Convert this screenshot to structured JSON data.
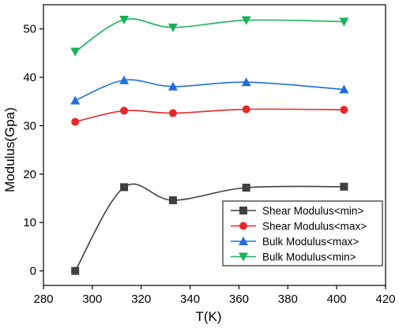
{
  "chart_data": {
    "type": "line",
    "title": "",
    "xlabel": "T(K)",
    "ylabel": "Modulus(Gpa)",
    "xlim": [
      280,
      420
    ],
    "ylim": [
      -3,
      55
    ],
    "xticks": [
      280,
      300,
      320,
      340,
      360,
      380,
      400,
      420
    ],
    "yticks": [
      0,
      10,
      20,
      30,
      40,
      50
    ],
    "x": [
      293,
      313,
      333,
      363,
      403
    ],
    "grid": false,
    "legend_position": "bottom-right",
    "series": [
      {
        "name": "Shear Modulus<min>",
        "color": "#404040",
        "marker": "square",
        "values": [
          0,
          17.3,
          14.6,
          17.2,
          17.4
        ]
      },
      {
        "name": "Shear Modulus<max>",
        "color": "#e8282b",
        "marker": "circle",
        "values": [
          30.8,
          33.1,
          32.6,
          33.4,
          33.3
        ]
      },
      {
        "name": "Bulk Modulus<max>",
        "color": "#1f6fe0",
        "marker": "triangle-up",
        "values": [
          35.2,
          39.4,
          38.1,
          39.0,
          37.5
        ]
      },
      {
        "name": "Bulk Modulus<min>",
        "color": "#17b257",
        "marker": "triangle-down",
        "values": [
          45.3,
          51.9,
          50.3,
          51.8,
          51.5
        ]
      }
    ]
  }
}
